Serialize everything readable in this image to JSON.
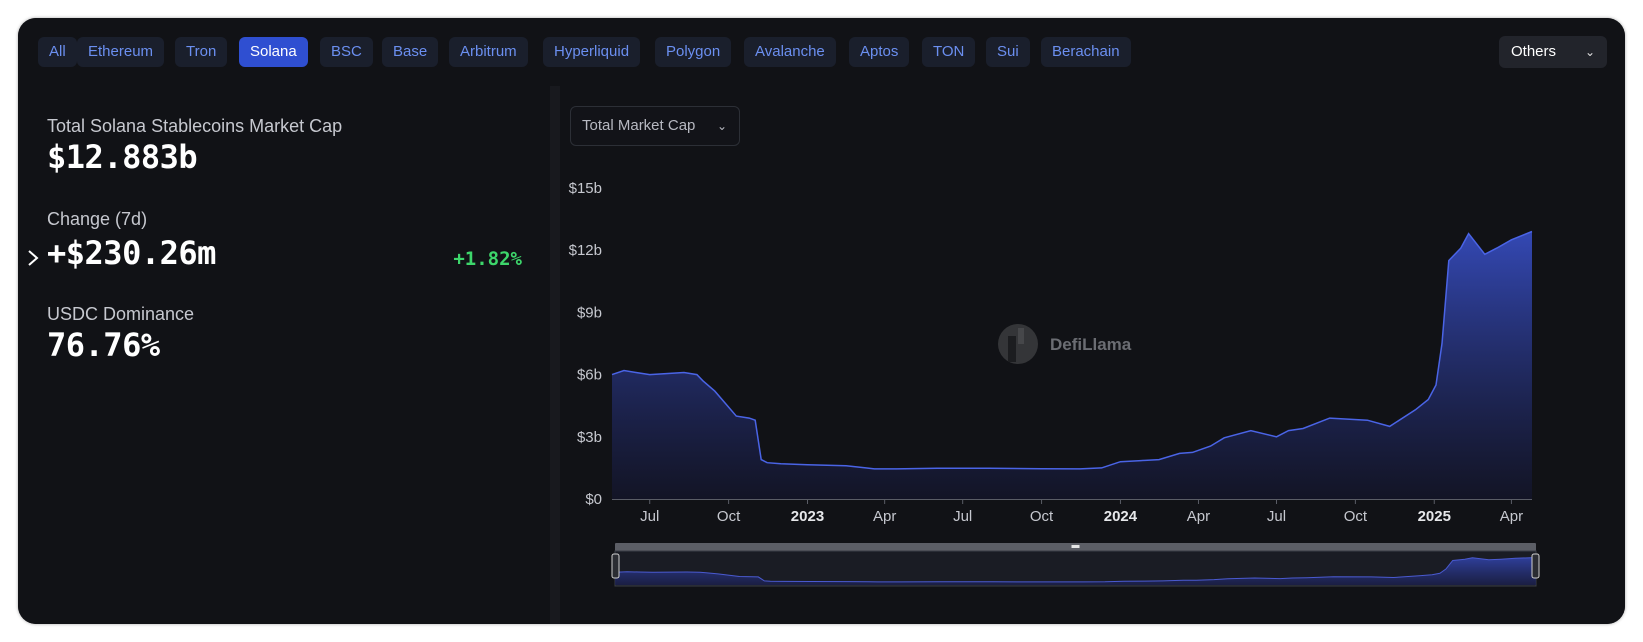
{
  "tabs": [
    {
      "label": "All",
      "active": false
    },
    {
      "label": "Ethereum",
      "active": false
    },
    {
      "label": "Tron",
      "active": false
    },
    {
      "label": "Solana",
      "active": true
    },
    {
      "label": "BSC",
      "active": false
    },
    {
      "label": "Base",
      "active": false
    },
    {
      "label": "Arbitrum",
      "active": false
    },
    {
      "label": "Hyperliquid",
      "active": false
    },
    {
      "label": "Polygon",
      "active": false
    },
    {
      "label": "Avalanche",
      "active": false
    },
    {
      "label": "Aptos",
      "active": false
    },
    {
      "label": "TON",
      "active": false
    },
    {
      "label": "Sui",
      "active": false
    },
    {
      "label": "Berachain",
      "active": false
    }
  ],
  "others_label": "Others",
  "stats": {
    "total_label": "Total Solana Stablecoins Market Cap",
    "total_value": "$12.883b",
    "change_label": "Change (7d)",
    "change_value": "+$230.26m",
    "change_pct": "+1.82%",
    "dominance_label": "USDC Dominance",
    "dominance_value": "76.76%"
  },
  "metric_select": "Total Market Cap",
  "watermark": "DefiLlama",
  "colors": {
    "accent": "#2f4fd1",
    "line": "#4a64e6",
    "positive": "#3dd66b",
    "tab_text": "#6b8ff0"
  },
  "chart_data": {
    "type": "area",
    "ylim": [
      0,
      15
    ],
    "y_unit": "b",
    "yticks": [
      "$0",
      "$3b",
      "$6b",
      "$9b",
      "$12b",
      "$15b"
    ],
    "xlim": [
      "2022-05-18",
      "2025-04-25"
    ],
    "xticks": [
      {
        "date": "2022-07-01",
        "label": "Jul",
        "bold": false
      },
      {
        "date": "2022-10-01",
        "label": "Oct",
        "bold": false
      },
      {
        "date": "2023-01-01",
        "label": "2023",
        "bold": true
      },
      {
        "date": "2023-04-01",
        "label": "Apr",
        "bold": false
      },
      {
        "date": "2023-07-01",
        "label": "Jul",
        "bold": false
      },
      {
        "date": "2023-10-01",
        "label": "Oct",
        "bold": false
      },
      {
        "date": "2024-01-01",
        "label": "2024",
        "bold": true
      },
      {
        "date": "2024-04-01",
        "label": "Apr",
        "bold": false
      },
      {
        "date": "2024-07-01",
        "label": "Jul",
        "bold": false
      },
      {
        "date": "2024-10-01",
        "label": "Oct",
        "bold": false
      },
      {
        "date": "2025-01-01",
        "label": "2025",
        "bold": true
      },
      {
        "date": "2025-04-01",
        "label": "Apr",
        "bold": false
      }
    ],
    "series": [
      {
        "x": [
          "2022-05-18",
          "2022-06-01",
          "2022-06-15",
          "2022-07-01",
          "2022-07-20",
          "2022-08-10",
          "2022-08-25",
          "2022-09-01",
          "2022-09-15",
          "2022-10-10",
          "2022-10-25",
          "2022-11-01",
          "2022-11-08",
          "2022-11-15",
          "2022-12-01",
          "2023-01-01",
          "2023-02-15",
          "2023-03-10",
          "2023-03-20",
          "2023-04-15",
          "2023-06-01",
          "2023-08-01",
          "2023-10-01",
          "2023-11-15",
          "2023-12-10",
          "2024-01-01",
          "2024-01-25",
          "2024-02-15",
          "2024-03-10",
          "2024-03-25",
          "2024-04-15",
          "2024-05-01",
          "2024-06-01",
          "2024-07-01",
          "2024-07-15",
          "2024-08-01",
          "2024-09-01",
          "2024-10-15",
          "2024-11-10",
          "2024-12-10",
          "2024-12-25",
          "2025-01-03",
          "2025-01-10",
          "2025-01-18",
          "2025-02-01",
          "2025-02-10",
          "2025-03-01",
          "2025-03-15",
          "2025-04-01",
          "2025-04-25"
        ],
        "y": [
          6.0,
          6.2,
          6.1,
          6.0,
          6.05,
          6.1,
          6.0,
          5.7,
          5.2,
          4.0,
          3.9,
          3.8,
          1.9,
          1.75,
          1.7,
          1.65,
          1.6,
          1.5,
          1.45,
          1.45,
          1.48,
          1.48,
          1.46,
          1.45,
          1.5,
          1.8,
          1.85,
          1.9,
          2.2,
          2.25,
          2.55,
          2.95,
          3.3,
          3.0,
          3.3,
          3.4,
          3.9,
          3.8,
          3.5,
          4.3,
          4.8,
          5.5,
          7.5,
          11.5,
          12.1,
          12.8,
          11.8,
          12.1,
          12.5,
          12.9
        ]
      }
    ]
  }
}
